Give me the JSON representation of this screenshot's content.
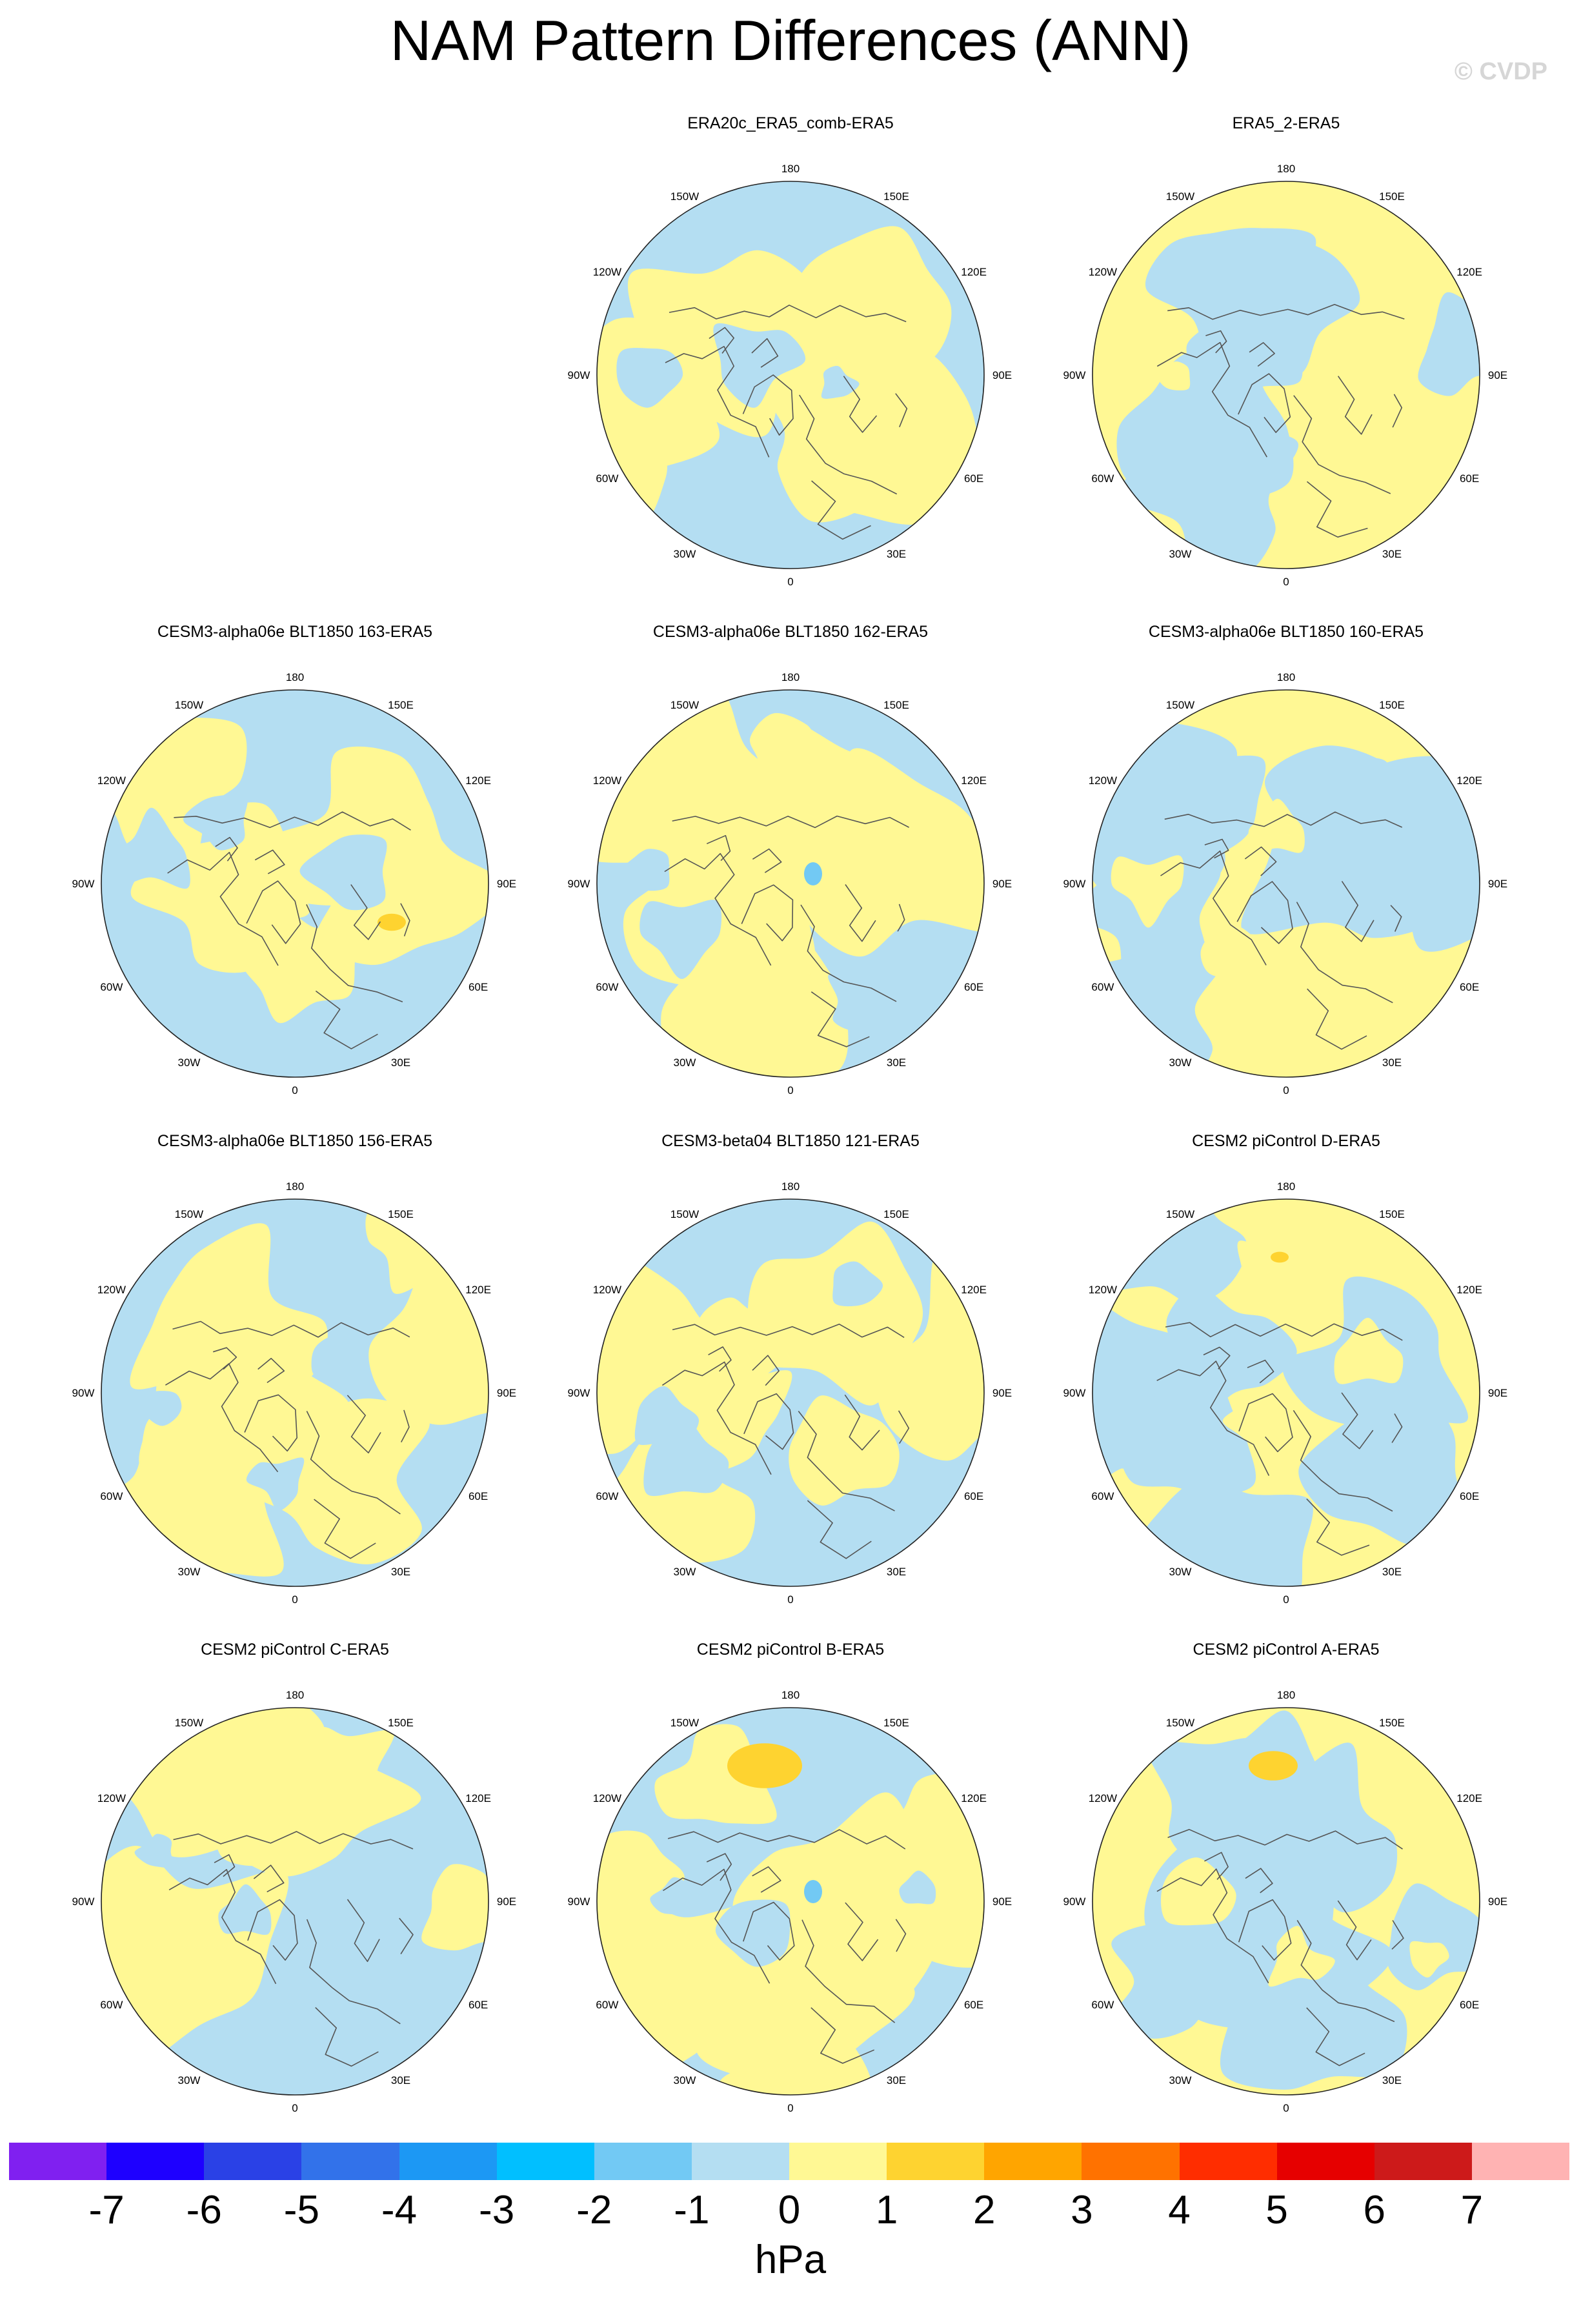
{
  "title": "NAM Pattern Differences (ANN)",
  "watermark": "© CVDP",
  "panels": [
    {
      "title": "ERA20c_ERA5_comb-ERA5"
    },
    {
      "title": "ERA5_2-ERA5"
    },
    {
      "title": "CESM3-alpha06e BLT1850 163-ERA5"
    },
    {
      "title": "CESM3-alpha06e BLT1850 162-ERA5"
    },
    {
      "title": "CESM3-alpha06e BLT1850 160-ERA5"
    },
    {
      "title": "CESM3-alpha06e BLT1850 156-ERA5"
    },
    {
      "title": "CESM3-beta04 BLT1850 121-ERA5"
    },
    {
      "title": "CESM2 piControl D-ERA5"
    },
    {
      "title": "CESM2 piControl C-ERA5"
    },
    {
      "title": "CESM2 piControl B-ERA5"
    },
    {
      "title": "CESM2 piControl A-ERA5"
    }
  ],
  "longitude_labels": [
    "180",
    "150E",
    "120E",
    "90E",
    "60E",
    "30E",
    "0",
    "30W",
    "60W",
    "90W",
    "120W",
    "150W"
  ],
  "colorbar": {
    "colors": [
      "#8020f0",
      "#1e00ff",
      "#2a41e6",
      "#3272ea",
      "#1c98f4",
      "#01bfff",
      "#72c9f4",
      "#b4def2",
      "#fff894",
      "#fed330",
      "#ffa500",
      "#ff7200",
      "#ff2d00",
      "#e60000",
      "#cd1a1a",
      "#ffb3b3"
    ],
    "labels": [
      "-7",
      "-6",
      "-5",
      "-4",
      "-3",
      "-2",
      "-1",
      "0",
      "1",
      "2",
      "3",
      "4",
      "5",
      "6",
      "7"
    ],
    "unit": "hPa"
  },
  "fill_colors": {
    "negative": "#b4def2",
    "positive": "#fff894",
    "strong_positive": "#fed330",
    "strong_negative": "#72c9f4"
  }
}
